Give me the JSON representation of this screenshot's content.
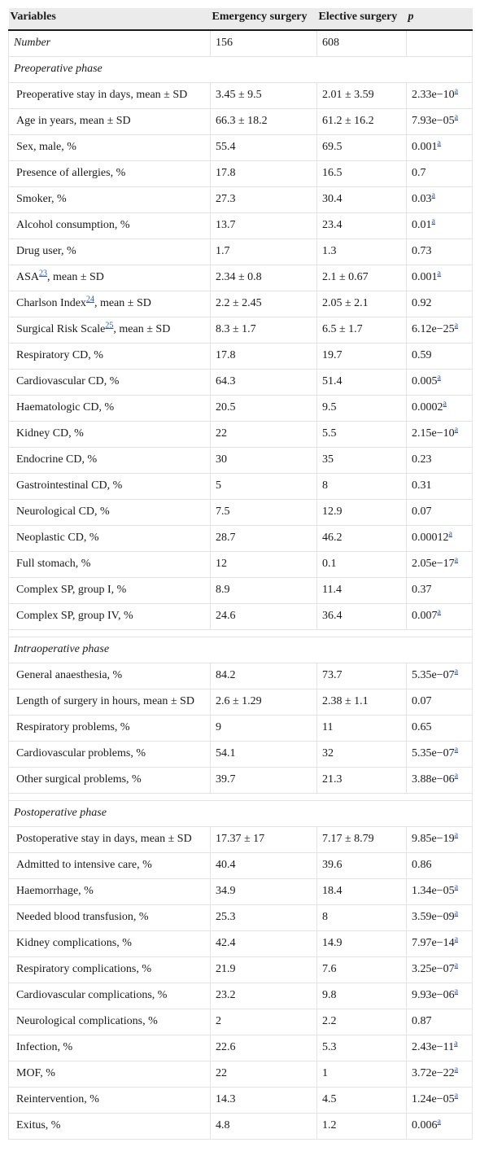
{
  "headers": {
    "variables": "Variables",
    "emergency": "Emergency surgery",
    "elective": "Elective surgery",
    "p": "p"
  },
  "number_row": {
    "label": "Number",
    "emergency": "156",
    "elective": "608",
    "p": ""
  },
  "sections": [
    {
      "title": "Preoperative phase",
      "rows": [
        {
          "pre": "Preoperative stay in days, mean ± SD",
          "ref": "",
          "post": "",
          "e": "3.45 ± 9.5",
          "l": "2.01 ± 3.59",
          "p": "2.33e−10",
          "sig": "a"
        },
        {
          "pre": "Age in years, mean ± SD",
          "ref": "",
          "post": "",
          "e": "66.3 ± 18.2",
          "l": "61.2 ± 16.2",
          "p": "7.93e−05",
          "sig": "a"
        },
        {
          "pre": "Sex, male, %",
          "ref": "",
          "post": "",
          "e": "55.4",
          "l": "69.5",
          "p": "0.001",
          "sig": "a"
        },
        {
          "pre": "Presence of allergies, %",
          "ref": "",
          "post": "",
          "e": "17.8",
          "l": "16.5",
          "p": "0.7",
          "sig": ""
        },
        {
          "pre": "Smoker, %",
          "ref": "",
          "post": "",
          "e": "27.3",
          "l": "30.4",
          "p": "0.03",
          "sig": "a"
        },
        {
          "pre": "Alcohol consumption, %",
          "ref": "",
          "post": "",
          "e": "13.7",
          "l": "23.4",
          "p": "0.01",
          "sig": "a"
        },
        {
          "pre": "Drug user, %",
          "ref": "",
          "post": "",
          "e": "1.7",
          "l": "1.3",
          "p": "0.73",
          "sig": ""
        },
        {
          "pre": "ASA",
          "ref": "23",
          "post": ", mean ± SD",
          "e": "2.34 ± 0.8",
          "l": "2.1 ± 0.67",
          "p": "0.001",
          "sig": "a"
        },
        {
          "pre": "Charlson Index",
          "ref": "24",
          "post": ", mean ± SD",
          "e": "2.2 ± 2.45",
          "l": "2.05 ± 2.1",
          "p": "0.92",
          "sig": ""
        },
        {
          "pre": "Surgical Risk Scale",
          "ref": "25",
          "post": ", mean ± SD",
          "e": "8.3 ± 1.7",
          "l": "6.5 ± 1.7",
          "p": "6.12e−25",
          "sig": "a"
        },
        {
          "pre": "Respiratory CD, %",
          "ref": "",
          "post": "",
          "e": "17.8",
          "l": "19.7",
          "p": "0.59",
          "sig": ""
        },
        {
          "pre": "Cardiovascular CD, %",
          "ref": "",
          "post": "",
          "e": "64.3",
          "l": "51.4",
          "p": "0.005",
          "sig": "a"
        },
        {
          "pre": "Haematologic CD, %",
          "ref": "",
          "post": "",
          "e": "20.5",
          "l": "9.5",
          "p": "0.0002",
          "sig": "a"
        },
        {
          "pre": "Kidney CD, %",
          "ref": "",
          "post": "",
          "e": "22",
          "l": "5.5",
          "p": "2.15e−10",
          "sig": "a"
        },
        {
          "pre": "Endocrine CD, %",
          "ref": "",
          "post": "",
          "e": "30",
          "l": "35",
          "p": "0.23",
          "sig": ""
        },
        {
          "pre": "Gastrointestinal CD, %",
          "ref": "",
          "post": "",
          "e": "5",
          "l": "8",
          "p": "0.31",
          "sig": ""
        },
        {
          "pre": "Neurological CD, %",
          "ref": "",
          "post": "",
          "e": "7.5",
          "l": "12.9",
          "p": "0.07",
          "sig": ""
        },
        {
          "pre": "Neoplastic CD, %",
          "ref": "",
          "post": "",
          "e": "28.7",
          "l": "46.2",
          "p": "0.00012",
          "sig": "a"
        },
        {
          "pre": "Full stomach, %",
          "ref": "",
          "post": "",
          "e": "12",
          "l": "0.1",
          "p": "2.05e−17",
          "sig": "a"
        },
        {
          "pre": "Complex SP, group I, %",
          "ref": "",
          "post": "",
          "e": "8.9",
          "l": "11.4",
          "p": "0.37",
          "sig": ""
        },
        {
          "pre": "Complex SP, group IV, %",
          "ref": "",
          "post": "",
          "e": "24.6",
          "l": "36.4",
          "p": "0.007",
          "sig": "a"
        }
      ]
    },
    {
      "title": "Intraoperative phase",
      "rows": [
        {
          "pre": "General anaesthesia, %",
          "ref": "",
          "post": "",
          "e": "84.2",
          "l": "73.7",
          "p": "5.35e−07",
          "sig": "a"
        },
        {
          "pre": "Length of surgery in hours, mean ± SD",
          "ref": "",
          "post": "",
          "e": "2.6 ± 1.29",
          "l": "2.38 ± 1.1",
          "p": "0.07",
          "sig": ""
        },
        {
          "pre": "Respiratory problems, %",
          "ref": "",
          "post": "",
          "e": "9",
          "l": "11",
          "p": "0.65",
          "sig": ""
        },
        {
          "pre": "Cardiovascular problems, %",
          "ref": "",
          "post": "",
          "e": "54.1",
          "l": "32",
          "p": "5.35e−07",
          "sig": "a"
        },
        {
          "pre": "Other surgical problems, %",
          "ref": "",
          "post": "",
          "e": "39.7",
          "l": "21.3",
          "p": "3.88e−06",
          "sig": "a"
        }
      ]
    },
    {
      "title": "Postoperative phase",
      "rows": [
        {
          "pre": "Postoperative stay in days, mean ± SD",
          "ref": "",
          "post": "",
          "e": "17.37 ± 17",
          "l": "7.17 ± 8.79",
          "p": "9.85e−19",
          "sig": "a"
        },
        {
          "pre": "Admitted to intensive care, %",
          "ref": "",
          "post": "",
          "e": "40.4",
          "l": "39.6",
          "p": "0.86",
          "sig": ""
        },
        {
          "pre": "Haemorrhage, %",
          "ref": "",
          "post": "",
          "e": "34.9",
          "l": "18.4",
          "p": "1.34e−05",
          "sig": "a"
        },
        {
          "pre": "Needed blood transfusion, %",
          "ref": "",
          "post": "",
          "e": "25.3",
          "l": "8",
          "p": "3.59e−09",
          "sig": "a"
        },
        {
          "pre": "Kidney complications, %",
          "ref": "",
          "post": "",
          "e": "42.4",
          "l": "14.9",
          "p": "7.97e−14",
          "sig": "a"
        },
        {
          "pre": "Respiratory complications, %",
          "ref": "",
          "post": "",
          "e": "21.9",
          "l": "7.6",
          "p": "3.25e−07",
          "sig": "a"
        },
        {
          "pre": "Cardiovascular complications, %",
          "ref": "",
          "post": "",
          "e": "23.2",
          "l": "9.8",
          "p": "9.93e−06",
          "sig": "a"
        },
        {
          "pre": "Neurological complications, %",
          "ref": "",
          "post": "",
          "e": "2",
          "l": "2.2",
          "p": "0.87",
          "sig": ""
        },
        {
          "pre": "Infection, %",
          "ref": "",
          "post": "",
          "e": "22.6",
          "l": "5.3",
          "p": "2.43e−11",
          "sig": "a"
        },
        {
          "pre": "MOF, %",
          "ref": "",
          "post": "",
          "e": "22",
          "l": "1",
          "p": "3.72e−22",
          "sig": "a"
        },
        {
          "pre": "Reintervention, %",
          "ref": "",
          "post": "",
          "e": "14.3",
          "l": "4.5",
          "p": "1.24e−05",
          "sig": "a"
        },
        {
          "pre": "Exitus, %",
          "ref": "",
          "post": "",
          "e": "4.8",
          "l": "1.2",
          "p": "0.006",
          "sig": "a"
        }
      ]
    }
  ]
}
